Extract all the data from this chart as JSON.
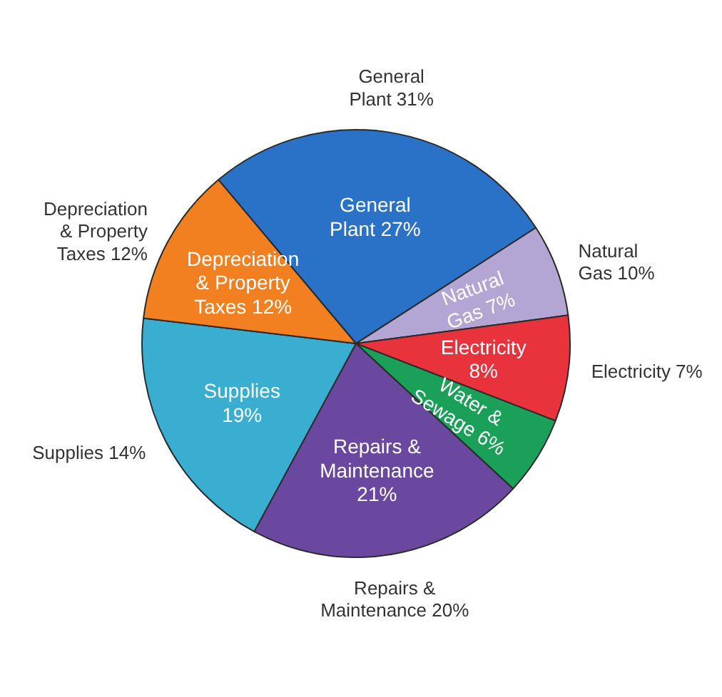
{
  "chart_data": {
    "type": "pie",
    "categories": [
      "General Plant",
      "Natural Gas",
      "Electricity",
      "Water & Sewage",
      "Repairs & Maintenance",
      "Supplies",
      "Depreciation & Property Taxes"
    ],
    "values": [
      27,
      7,
      8,
      6,
      21,
      19,
      12
    ],
    "colors": [
      "#2a72c8",
      "#b3a6d4",
      "#e8323c",
      "#1aa058",
      "#6a48a0",
      "#3aaed0",
      "#f28020"
    ],
    "value_labels": [
      "27%",
      "7%",
      "8%",
      "6%",
      "21%",
      "19%",
      "12%"
    ],
    "annotations": [
      {
        "text": "General Plant 31%",
        "x": "General Plant"
      },
      {
        "text": "Natural Gas 10%",
        "x": "Natural Gas"
      },
      {
        "text": "Electricity 7%",
        "x": "Electricity"
      },
      {
        "text": "Repairs & Maintenance 20%",
        "x": "Repairs & Maintenance"
      },
      {
        "text": "Supplies 14%",
        "x": "Supplies"
      },
      {
        "text": "Depreciation & Property Taxes 12%",
        "x": "Depreciation & Property Taxes"
      }
    ]
  }
}
